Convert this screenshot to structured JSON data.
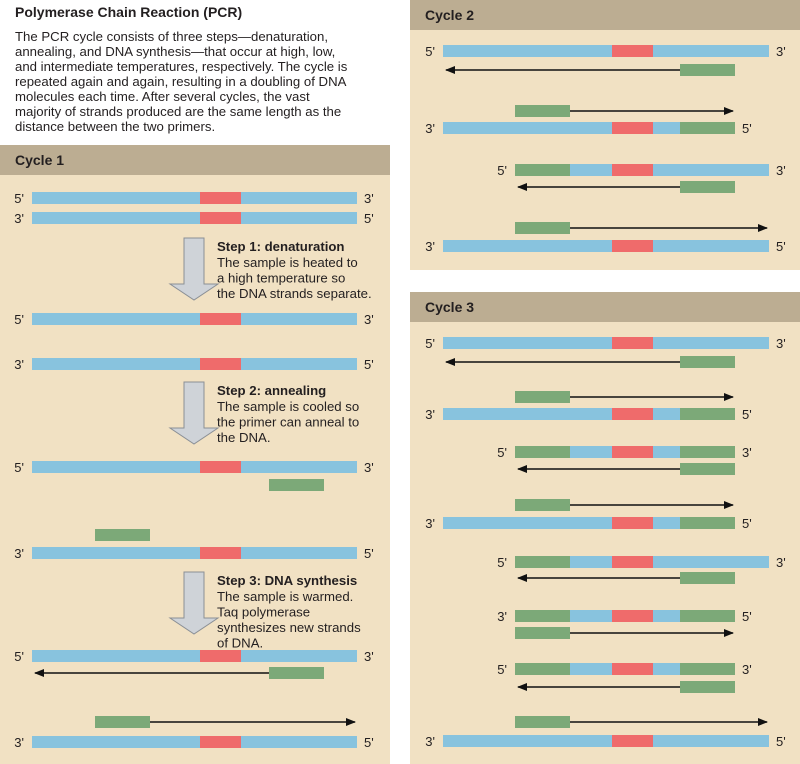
{
  "title": "Polymerase Chain Reaction (PCR)",
  "intro": "The PCR cycle consists of three steps—denaturation, annealing, and DNA synthesis—that occur at high, low, and intermediate temperatures, respectively. The cycle is repeated again and again, resulting in a doubling of DNA molecules each time. After several cycles, the vast majority of strands produced are the same length as the distance between the two primers.",
  "colors": {
    "panel": "#f1e1c3",
    "header": "#bcad92",
    "dna": "#88c3de",
    "target": "#ef6b6b",
    "primer": "#7ca978",
    "arrow": "#cfd3d8"
  },
  "cycles": [
    {
      "label": "Cycle 1",
      "strands": [
        [
          "5'",
          "3'"
        ],
        [
          "3'",
          "5'"
        ],
        [
          "5'",
          "3'"
        ],
        [
          "3'",
          "5'"
        ],
        [
          "5'",
          "3'"
        ],
        [
          "3'",
          "5'"
        ],
        [
          "5'",
          "3'"
        ],
        [
          "3'",
          "5'"
        ]
      ],
      "steps": [
        {
          "heading": "Step 1: denaturation",
          "lines": [
            "The sample is heated to",
            "a high temperature so",
            "the DNA strands separate."
          ]
        },
        {
          "heading": "Step 2: annealing",
          "lines": [
            "The sample is cooled so",
            "the primer can anneal to",
            "the DNA."
          ]
        },
        {
          "heading": "Step 3: DNA synthesis",
          "lines": [
            "The sample is warmed.",
            "Taq polymerase",
            "synthesizes new strands",
            "of DNA."
          ]
        }
      ]
    },
    {
      "label": "Cycle 2",
      "strands": [
        [
          "5'",
          "3'"
        ],
        [
          "3'",
          "5'"
        ],
        [
          "5'",
          "3'"
        ],
        [
          "3'",
          "5'"
        ]
      ]
    },
    {
      "label": "Cycle 3",
      "strands": [
        [
          "5'",
          "3'"
        ],
        [
          "3'",
          "5'"
        ],
        [
          "5'",
          "3'"
        ],
        [
          "3'",
          "5'"
        ],
        [
          "5'",
          "3'"
        ],
        [
          "3'",
          "5'"
        ],
        [
          "5'",
          "3'"
        ],
        [
          "3'",
          "5'"
        ]
      ]
    }
  ]
}
